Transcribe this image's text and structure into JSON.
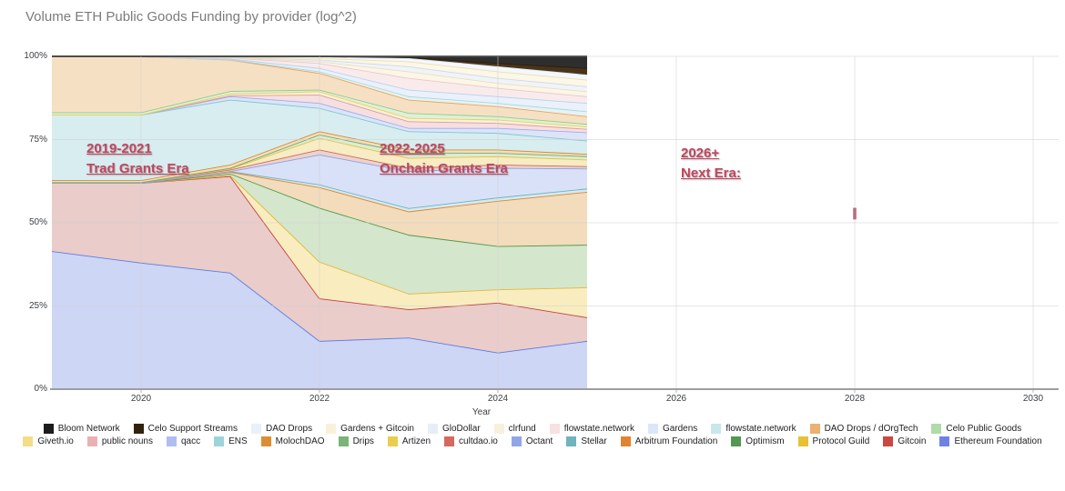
{
  "title": "Volume ETH Public Goods Funding by provider (log^2)",
  "annotations": {
    "era1": {
      "line1": "2019-2021",
      "line2": "Trad Grants Era"
    },
    "era2": {
      "line1": "2022-2025",
      "line2": "Onchain Grants Era"
    },
    "era3": {
      "line1": "2026+",
      "line2": "Next Era:"
    }
  },
  "colors": {
    "annotation": "#c2455e",
    "title_text": "#7b7b7b",
    "axis_line": "#9e9e9e",
    "gridline": "#e3e3e3"
  },
  "axes": {
    "xlabel": "Year",
    "x_ticks": [
      "2020",
      "2022",
      "2024",
      "2026",
      "2028",
      "2030"
    ],
    "x_tick_years": [
      2020,
      2022,
      2024,
      2026,
      2028,
      2030
    ],
    "y_ticks": [
      "100%",
      "75%",
      "50%",
      "25%",
      "0%"
    ],
    "y_tick_pcts": [
      100,
      75,
      50,
      25,
      0
    ]
  },
  "chart_data": {
    "type": "area",
    "stacked": true,
    "title": "Volume ETH Public Goods Funding by provider (log^2)",
    "xlabel": "Year",
    "ylabel": "",
    "x_range": [
      2019,
      2030.3
    ],
    "y_range": [
      0,
      100
    ],
    "units": "percent share of volume",
    "x": [
      2019,
      2020,
      2021,
      2022,
      2023,
      2024,
      2025
    ],
    "series": [
      {
        "name": "Ethereum Foundation",
        "fill": "#cdd6f4",
        "stroke": "#5e7ce2",
        "values": [
          41.5,
          38,
          35,
          14.5,
          15.5,
          11,
          14.5
        ]
      },
      {
        "name": "Gitcoin",
        "fill": "#eaccca",
        "stroke": "#c3423f",
        "values": [
          20.5,
          24,
          29,
          12.8,
          8.5,
          15,
          7.1
        ]
      },
      {
        "name": "Protocol Guild",
        "fill": "#f9edc0",
        "stroke": "#e3b73a",
        "values": [
          0,
          0,
          0.3,
          11,
          4.7,
          4,
          9
        ]
      },
      {
        "name": "Optimism",
        "fill": "#d4e6cc",
        "stroke": "#55984f",
        "values": [
          0,
          0,
          0.5,
          16.2,
          17.7,
          13,
          12.8
        ]
      },
      {
        "name": "Arbitrum Foundation",
        "fill": "#f2dcbc",
        "stroke": "#df8433",
        "values": [
          0,
          0,
          0.5,
          6.2,
          7,
          13.6,
          15.9
        ]
      },
      {
        "name": "Stellar",
        "fill": "#d4eaee",
        "stroke": "#6fb3bd",
        "values": [
          0,
          0,
          0.2,
          0.8,
          1,
          1,
          1
        ]
      },
      {
        "name": "Octant",
        "fill": "#d9e1f8",
        "stroke": "#8b9fe8",
        "values": [
          0,
          0,
          0,
          9,
          11.1,
          8.9,
          6
        ]
      },
      {
        "name": "cultdao.io",
        "fill": "#edd2cc",
        "stroke": "#c96a5c",
        "values": [
          0.2,
          0.2,
          0.5,
          1.5,
          1,
          1,
          0.7
        ]
      },
      {
        "name": "Artizen",
        "fill": "#f7ecc3",
        "stroke": "#e2c348",
        "values": [
          0,
          0,
          0.3,
          3.5,
          3,
          2.5,
          2
        ]
      },
      {
        "name": "Drips",
        "fill": "#dcecd5",
        "stroke": "#6fae6d",
        "values": [
          0,
          0,
          0.2,
          1,
          1.5,
          1,
          1
        ]
      },
      {
        "name": "MolochDAO",
        "fill": "#f3ddbb",
        "stroke": "#d98b2b",
        "values": [
          0.6,
          0.6,
          1,
          1,
          1,
          1,
          0.7
        ]
      },
      {
        "name": "ENS",
        "fill": "#d8edf0",
        "stroke": "#7ec8d2",
        "values": [
          19.7,
          19.7,
          19.5,
          7,
          5.5,
          5,
          4
        ]
      },
      {
        "name": "qacc",
        "fill": "#dde3f9",
        "stroke": "#9dade9",
        "values": [
          0,
          0,
          1,
          1.5,
          1,
          1.5,
          2.5
        ]
      },
      {
        "name": "public nouns",
        "fill": "#f6dfe1",
        "stroke": "#dd9aa2",
        "values": [
          0,
          0,
          0.3,
          2.5,
          2,
          1.5,
          1
        ]
      },
      {
        "name": "Giveth.io",
        "fill": "#faf1d4",
        "stroke": "#e8d05e",
        "values": [
          0,
          0,
          0.5,
          1,
          1,
          1,
          0.7
        ]
      },
      {
        "name": "Celo Public Goods",
        "fill": "#def0da",
        "stroke": "#8fcb8a",
        "values": [
          0.7,
          0.7,
          0.8,
          0.5,
          1.5,
          1,
          0.8
        ]
      },
      {
        "name": "DAO Drops / dOrgTech",
        "fill": "#f6e0c3",
        "stroke": "#e9a55d",
        "values": [
          16.8,
          16.8,
          9.4,
          5,
          4,
          3,
          2.3
        ]
      },
      {
        "name": "flowstate.network",
        "fill": "#e6f3f5",
        "stroke": "#a8d8de",
        "values": [
          0,
          0,
          0.1,
          0.5,
          1,
          1,
          1.5
        ]
      },
      {
        "name": "Gardens",
        "fill": "#eaf1fb",
        "stroke": "#b9d1f0",
        "values": [
          0,
          0,
          0.2,
          1,
          2,
          2,
          2.5
        ]
      },
      {
        "name": "flowstate.network",
        "fill": "#f9ebec",
        "stroke": "#ecc6ca",
        "values": [
          0,
          0,
          0.3,
          1.5,
          3.5,
          2.5,
          2
        ]
      },
      {
        "name": "clrfund",
        "fill": "#fbf6e7",
        "stroke": "#eadfbc",
        "values": [
          0,
          0,
          0.1,
          0.5,
          2,
          1.5,
          1.5
        ]
      },
      {
        "name": "GloDollar",
        "fill": "#f0f4f9",
        "stroke": "#ccd9e6",
        "values": [
          0,
          0,
          0.1,
          0.5,
          1.5,
          1.5,
          1.5
        ]
      },
      {
        "name": "Gardens + Gitcoin",
        "fill": "#fcf7e6",
        "stroke": "#edddae",
        "values": [
          0,
          0,
          0.1,
          0.5,
          1.5,
          2,
          2
        ]
      },
      {
        "name": "DAO Drops",
        "fill": "#f4f8fc",
        "stroke": "#dce8f4",
        "values": [
          0,
          0,
          0.1,
          0.5,
          1,
          1.5,
          1.5
        ]
      },
      {
        "name": "Celo Support Streams",
        "fill": "#4a3419",
        "stroke": "#2c1d0c",
        "values": [
          0,
          0,
          0,
          0,
          0.25,
          1,
          2
        ]
      },
      {
        "name": "Bloom Network",
        "fill": "#2e2e2e",
        "stroke": "#111111",
        "values": [
          0,
          0,
          0,
          0,
          0.25,
          2,
          3.5
        ]
      }
    ],
    "future_marker": {
      "year": 2028,
      "pct_low": 51,
      "pct_high": 54.5,
      "color": "#b0556a"
    }
  },
  "legend": {
    "rows": [
      [
        {
          "label": "Bloom Network",
          "color": "#1c1c1c"
        },
        {
          "label": "Celo Support Streams",
          "color": "#30220f"
        },
        {
          "label": "DAO Drops",
          "color": "#e9f0f8"
        },
        {
          "label": "Gardens + Gitcoin",
          "color": "#f8f0d8"
        },
        {
          "label": "GloDollar",
          "color": "#e8eef5"
        },
        {
          "label": "clrfund",
          "color": "#f7f0dc"
        },
        {
          "label": "flowstate.network",
          "color": "#f6e1e3"
        },
        {
          "label": "Gardens",
          "color": "#dbe7f8"
        },
        {
          "label": "flowstate.network",
          "color": "#c9e6eb"
        },
        {
          "label": "DAO Drops / dOrgTech",
          "color": "#ebb171"
        },
        {
          "label": "Celo Public Goods",
          "color": "#afdba9"
        }
      ],
      [
        {
          "label": "Giveth.io",
          "color": "#f2dd88"
        },
        {
          "label": "public nouns",
          "color": "#eab1b4"
        },
        {
          "label": "qacc",
          "color": "#afbdf0"
        },
        {
          "label": "ENS",
          "color": "#9dd4db"
        },
        {
          "label": "MolochDAO",
          "color": "#dd8e35"
        },
        {
          "label": "Drips",
          "color": "#78b576"
        },
        {
          "label": "Artizen",
          "color": "#eace4b"
        },
        {
          "label": "cultdao.io",
          "color": "#d4695d"
        },
        {
          "label": "Octant",
          "color": "#91a6e9"
        },
        {
          "label": "Stellar",
          "color": "#70b4be"
        },
        {
          "label": "Arbitrum Foundation",
          "color": "#e08431"
        },
        {
          "label": "Optimism",
          "color": "#549652"
        },
        {
          "label": "Protocol Guild",
          "color": "#e6c133"
        },
        {
          "label": "Gitcoin",
          "color": "#c9483f"
        },
        {
          "label": "Ethereum Foundation",
          "color": "#6d83e4"
        }
      ]
    ]
  }
}
